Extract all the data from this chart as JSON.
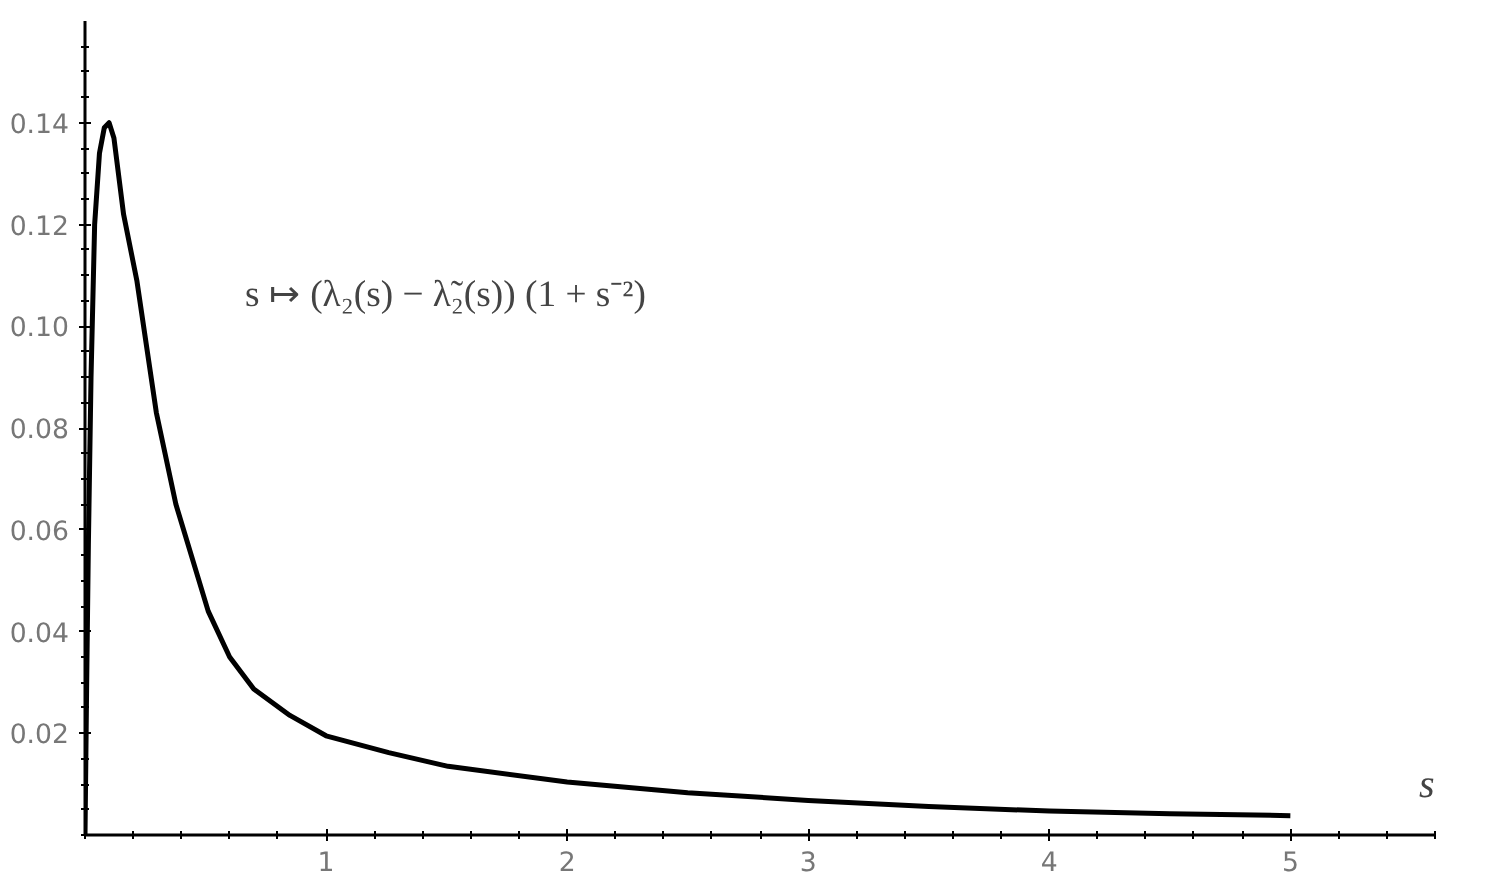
{
  "chart_data": {
    "type": "line",
    "annotations": [
      "s ↦ (λ₂(s) − λ̃₂(s)) (1 + s⁻²)"
    ],
    "xlabel": "s",
    "x": [
      0,
      0.007,
      0.014,
      0.025,
      0.04,
      0.06,
      0.08,
      0.1,
      0.12,
      0.16,
      0.215,
      0.296,
      0.377,
      0.511,
      0.6,
      0.7,
      0.85,
      1.0,
      1.26,
      1.506,
      2.0,
      2.5,
      3.0,
      3.5,
      4.0,
      4.5,
      5.0
    ],
    "series": [
      {
        "color": "#000000",
        "values": [
          0,
          0.03,
          0.057,
          0.09,
          0.12,
          0.134,
          0.139,
          0.14,
          0.137,
          0.122,
          0.109,
          0.083,
          0.065,
          0.044,
          0.035,
          0.0287,
          0.0235,
          0.0195,
          0.0162,
          0.0135,
          0.0104,
          0.0083,
          0.0068,
          0.0056,
          0.0047,
          0.0042,
          0.0038
        ]
      }
    ],
    "xlim": [
      0,
      5.6
    ],
    "ylim": [
      0,
      0.16
    ],
    "xticks": [
      1,
      2,
      3,
      4,
      5
    ],
    "yticks": [
      {
        "value": 0.02,
        "label": "0.02"
      },
      {
        "value": 0.04,
        "label": "0.04"
      },
      {
        "value": 0.06,
        "label": "0.06"
      },
      {
        "value": 0.08,
        "label": "0.08"
      },
      {
        "value": 0.1,
        "label": "0.10"
      },
      {
        "value": 0.12,
        "label": "0.12"
      },
      {
        "value": 0.14,
        "label": "0.14"
      }
    ],
    "grid": false,
    "marker": "none",
    "line_style": "solid"
  }
}
